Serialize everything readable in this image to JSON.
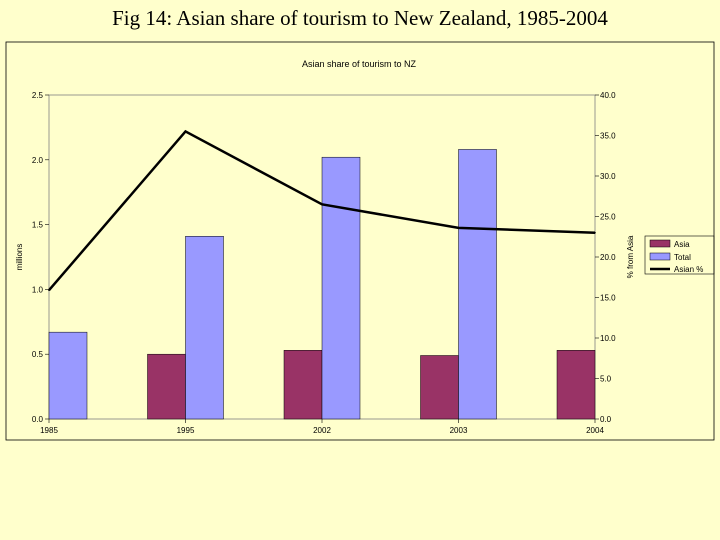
{
  "slide_title": "Fig 14: Asian share of tourism to New Zealand, 1985-2004",
  "chart_data": {
    "type": "bar",
    "title": "Asian share of tourism to NZ",
    "categories": [
      "1985",
      "1995",
      "2002",
      "2003",
      "2004"
    ],
    "series": [
      {
        "name": "Asia",
        "kind": "bar",
        "axis": "left",
        "color": "#993366",
        "values": [
          null,
          0.5,
          0.53,
          0.49,
          0.53
        ]
      },
      {
        "name": "Total",
        "kind": "bar",
        "axis": "left",
        "color": "#9999ff",
        "values": [
          0.67,
          1.41,
          2.02,
          2.08,
          null
        ]
      },
      {
        "name": "Asian %",
        "kind": "line",
        "axis": "right",
        "color": "#000000",
        "values": [
          15.9,
          35.5,
          26.5,
          23.6,
          23.0
        ]
      }
    ],
    "ylabel": "millions",
    "ylabel_right": "% from Asia",
    "ylim": [
      0,
      2.5
    ],
    "ylim_right": [
      0,
      40
    ],
    "yticks": [
      "0.0",
      "0.5",
      "1.0",
      "1.5",
      "2.0",
      "2.5"
    ],
    "yticks_right": [
      "0.0",
      "5.0",
      "10.0",
      "15.0",
      "20.0",
      "25.0",
      "30.0",
      "35.0",
      "40.0"
    ],
    "legend": "right",
    "grid": false
  }
}
